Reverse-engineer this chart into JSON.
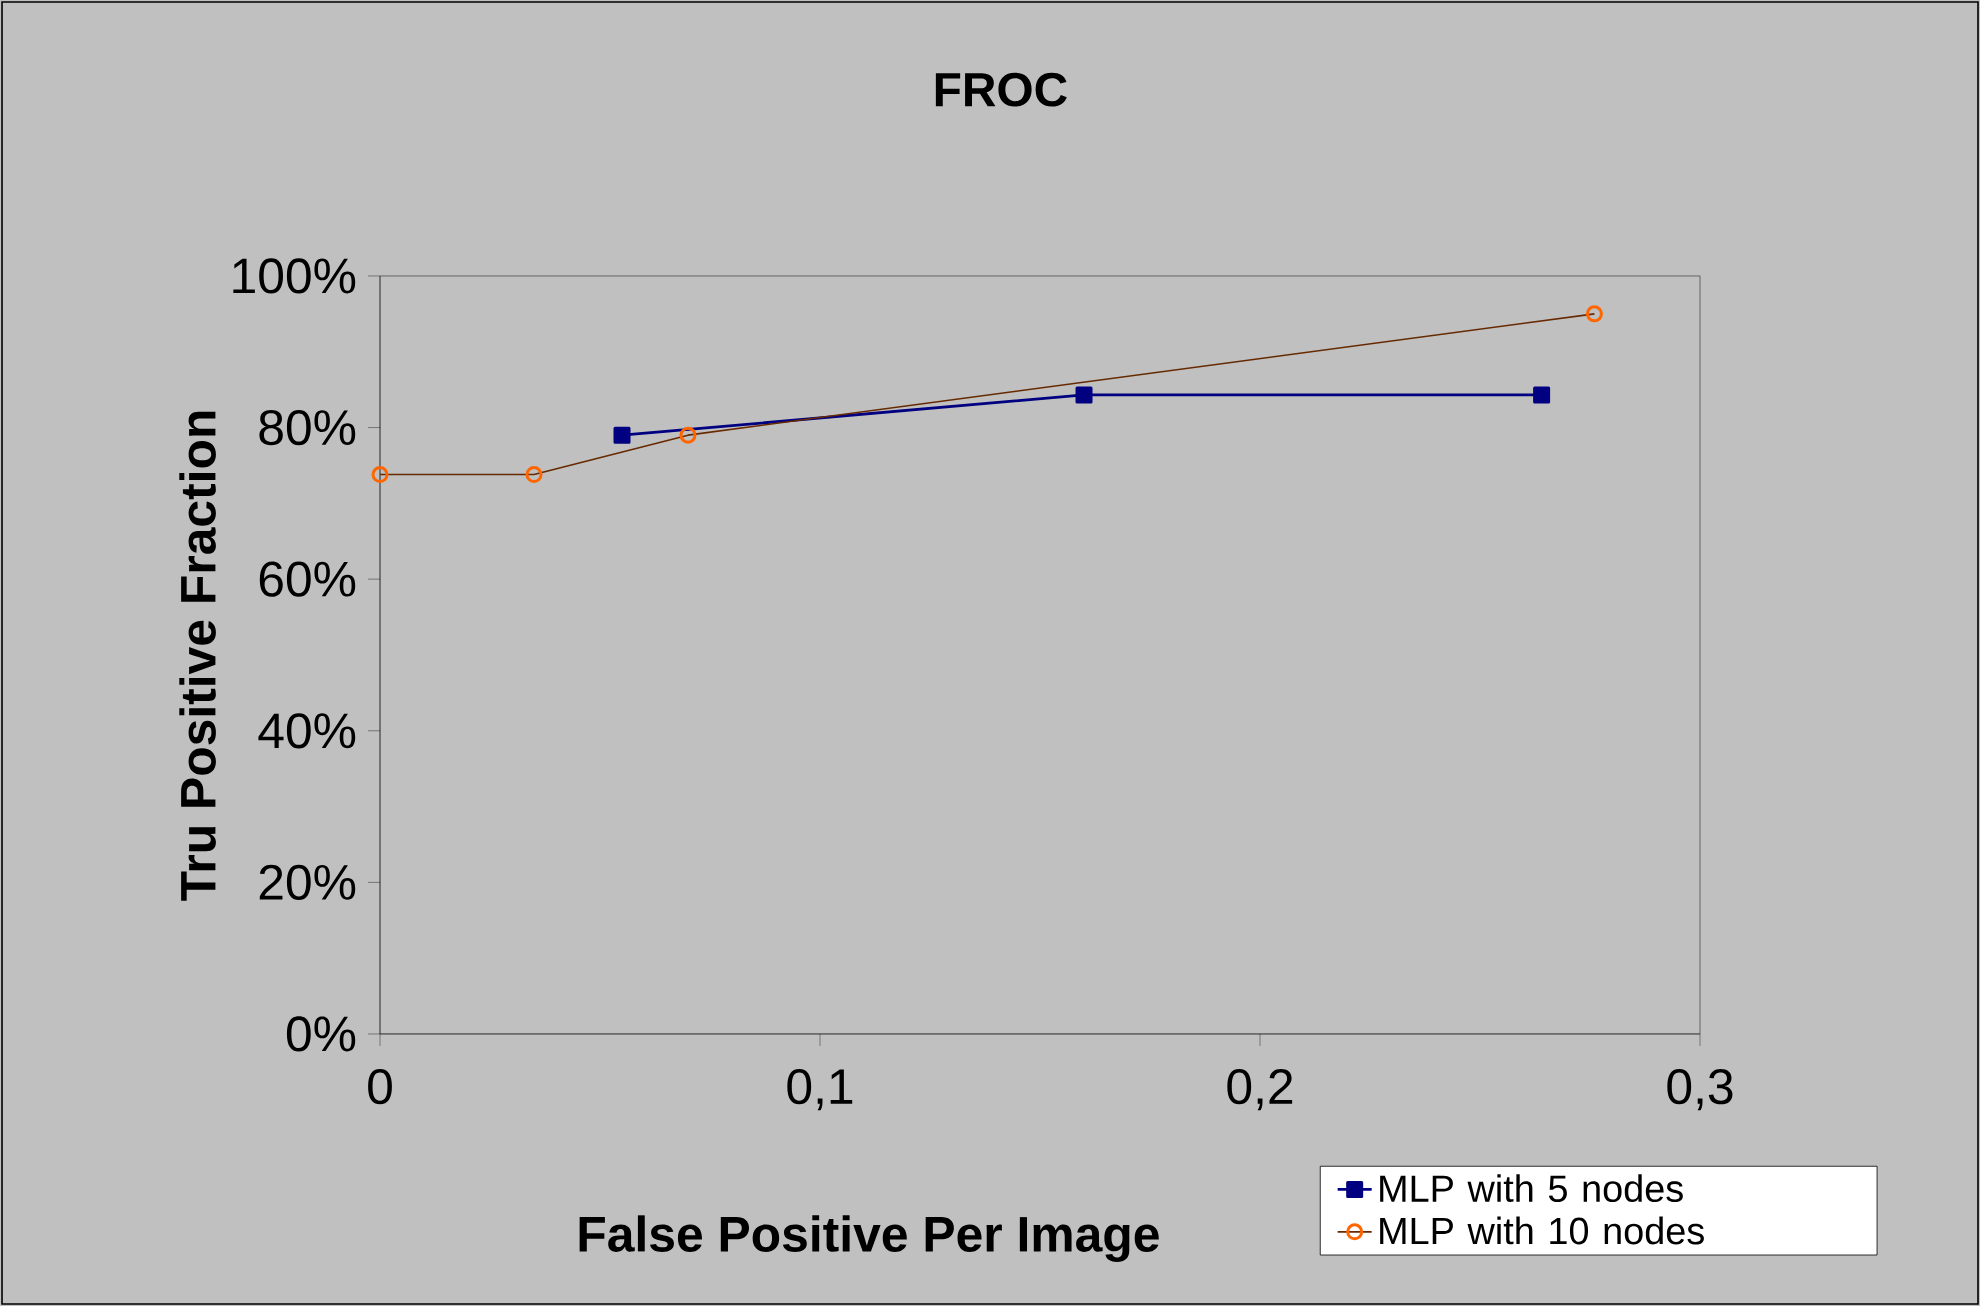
{
  "chart_data": {
    "type": "line",
    "title": "FROC",
    "xlabel": "False Positive Per Image",
    "ylabel": "Tru Positive Fraction",
    "series": [
      {
        "name": "MLP with 5 nodes",
        "color": "#000080",
        "marker": "square",
        "x": [
          0.055,
          0.16,
          0.264
        ],
        "values": [
          79,
          84.3,
          84.3
        ]
      },
      {
        "name": "MLP with 10 nodes",
        "color": "#ff6600",
        "marker": "circle",
        "x": [
          0,
          0.035,
          0.07,
          0.276
        ],
        "values": [
          73.8,
          73.8,
          79,
          95
        ]
      }
    ],
    "xlim": [
      0,
      0.3
    ],
    "xticks": [
      0,
      {
        "value": 0.1,
        "label": "0,1"
      },
      {
        "value": 0.2,
        "label": "0,2"
      },
      {
        "value": 0.3,
        "label": "0,3"
      }
    ],
    "ylim": [
      0,
      100
    ],
    "yticks": [
      {
        "value": 0,
        "label": "0%"
      },
      {
        "value": 20,
        "label": "20%"
      },
      {
        "value": 40,
        "label": "40%"
      },
      {
        "value": 60,
        "label": "60%"
      },
      {
        "value": 80,
        "label": "80%"
      },
      {
        "value": 100,
        "label": "100%"
      }
    ],
    "legend": "bottom right"
  }
}
